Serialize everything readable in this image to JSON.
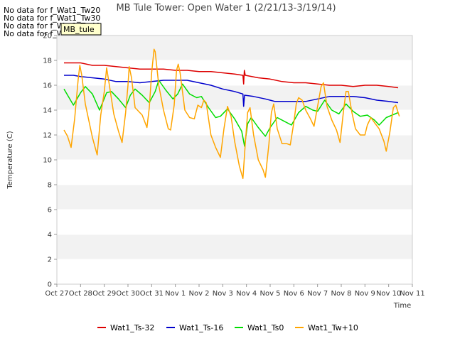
{
  "no_data_messages": [
    "No data for f_Wat1_Tw20",
    "No data for f_Wat1_Tw30",
    "No data for f_Wat1_Tw40",
    "No data for f_Wat1_Tw50"
  ],
  "tooltip_label": "MB_tule",
  "chart_data": {
    "type": "line",
    "title": "MB Tule Tower: Open Water 1 (2/21/13-3/19/14)",
    "xlabel": "Time",
    "ylabel": "Temperature (C)",
    "xlim": [
      0,
      15
    ],
    "ylim": [
      0,
      20
    ],
    "x_tick_values": [
      0,
      1,
      2,
      3,
      4,
      5,
      6,
      7,
      8,
      9,
      10,
      11,
      12,
      13,
      14,
      15
    ],
    "x_tick_labels": [
      "Oct 27",
      "Oct 28",
      "Oct 29",
      "Oct 30",
      "Oct 31",
      "Nov 1",
      "Nov 2",
      "Nov 3",
      "Nov 4",
      "Nov 5",
      "Nov 6",
      "Nov 7",
      "Nov 8",
      "Nov 9",
      "Nov 10",
      "Nov 11"
    ],
    "y_ticks": [
      0,
      2,
      4,
      6,
      8,
      10,
      12,
      14,
      16,
      18,
      20
    ],
    "grid": true,
    "legend_position": "bottom",
    "series": [
      {
        "name": "Wat1_Ts-32",
        "color": "#dd0000",
        "points": [
          [
            0.3,
            17.8
          ],
          [
            1.0,
            17.8
          ],
          [
            1.5,
            17.6
          ],
          [
            2.0,
            17.6
          ],
          [
            2.5,
            17.5
          ],
          [
            3.0,
            17.4
          ],
          [
            3.5,
            17.3
          ],
          [
            4.0,
            17.3
          ],
          [
            4.5,
            17.3
          ],
          [
            5.0,
            17.2
          ],
          [
            5.5,
            17.2
          ],
          [
            6.0,
            17.1
          ],
          [
            6.5,
            17.1
          ],
          [
            7.0,
            17.0
          ],
          [
            7.5,
            16.9
          ],
          [
            7.85,
            16.8
          ],
          [
            7.88,
            16.1
          ],
          [
            7.91,
            17.2
          ],
          [
            7.95,
            16.8
          ],
          [
            8.5,
            16.6
          ],
          [
            9.0,
            16.5
          ],
          [
            9.5,
            16.3
          ],
          [
            10.0,
            16.2
          ],
          [
            10.5,
            16.2
          ],
          [
            11.0,
            16.1
          ],
          [
            11.5,
            16.0
          ],
          [
            12.0,
            16.0
          ],
          [
            12.5,
            15.9
          ],
          [
            13.0,
            16.0
          ],
          [
            13.5,
            16.0
          ],
          [
            14.0,
            15.9
          ],
          [
            14.4,
            15.8
          ]
        ]
      },
      {
        "name": "Wat1_Ts-16",
        "color": "#0000cc",
        "points": [
          [
            0.3,
            16.8
          ],
          [
            0.7,
            16.8
          ],
          [
            1.0,
            16.7
          ],
          [
            1.5,
            16.6
          ],
          [
            2.0,
            16.5
          ],
          [
            2.5,
            16.3
          ],
          [
            3.0,
            16.3
          ],
          [
            3.5,
            16.2
          ],
          [
            4.0,
            16.3
          ],
          [
            4.5,
            16.4
          ],
          [
            5.0,
            16.4
          ],
          [
            5.5,
            16.4
          ],
          [
            6.0,
            16.2
          ],
          [
            6.5,
            16.0
          ],
          [
            7.0,
            15.7
          ],
          [
            7.5,
            15.5
          ],
          [
            7.85,
            15.3
          ],
          [
            7.88,
            14.3
          ],
          [
            7.92,
            15.2
          ],
          [
            8.3,
            15.1
          ],
          [
            8.8,
            14.9
          ],
          [
            9.2,
            14.7
          ],
          [
            10.0,
            14.7
          ],
          [
            10.5,
            14.7
          ],
          [
            11.0,
            14.9
          ],
          [
            11.5,
            15.1
          ],
          [
            12.0,
            15.1
          ],
          [
            12.5,
            15.1
          ],
          [
            13.0,
            15.0
          ],
          [
            13.5,
            14.8
          ],
          [
            14.0,
            14.7
          ],
          [
            14.4,
            14.6
          ]
        ]
      },
      {
        "name": "Wat1_Ts0",
        "color": "#00dd00",
        "points": [
          [
            0.3,
            15.7
          ],
          [
            0.7,
            14.4
          ],
          [
            1.0,
            15.4
          ],
          [
            1.2,
            15.9
          ],
          [
            1.5,
            15.3
          ],
          [
            1.8,
            14.0
          ],
          [
            2.1,
            15.4
          ],
          [
            2.3,
            15.5
          ],
          [
            2.6,
            14.9
          ],
          [
            2.9,
            14.2
          ],
          [
            3.1,
            15.2
          ],
          [
            3.3,
            15.7
          ],
          [
            3.6,
            15.2
          ],
          [
            3.9,
            14.6
          ],
          [
            4.15,
            15.5
          ],
          [
            4.3,
            16.4
          ],
          [
            4.6,
            15.6
          ],
          [
            4.9,
            14.9
          ],
          [
            5.1,
            15.3
          ],
          [
            5.3,
            16.1
          ],
          [
            5.6,
            15.3
          ],
          [
            5.9,
            15.0
          ],
          [
            6.1,
            15.1
          ],
          [
            6.4,
            14.2
          ],
          [
            6.7,
            13.4
          ],
          [
            6.9,
            13.5
          ],
          [
            7.2,
            14.1
          ],
          [
            7.5,
            13.3
          ],
          [
            7.8,
            12.3
          ],
          [
            7.92,
            11.1
          ],
          [
            8.05,
            12.9
          ],
          [
            8.2,
            13.4
          ],
          [
            8.5,
            12.6
          ],
          [
            8.8,
            11.9
          ],
          [
            9.0,
            12.6
          ],
          [
            9.3,
            13.4
          ],
          [
            9.6,
            13.1
          ],
          [
            9.9,
            12.8
          ],
          [
            10.2,
            13.8
          ],
          [
            10.5,
            14.3
          ],
          [
            10.8,
            14.0
          ],
          [
            11.0,
            13.9
          ],
          [
            11.3,
            14.8
          ],
          [
            11.6,
            14.0
          ],
          [
            11.9,
            13.7
          ],
          [
            12.2,
            14.5
          ],
          [
            12.5,
            13.9
          ],
          [
            12.8,
            13.5
          ],
          [
            13.1,
            13.6
          ],
          [
            13.4,
            13.2
          ],
          [
            13.6,
            12.8
          ],
          [
            13.9,
            13.4
          ],
          [
            14.4,
            13.8
          ]
        ]
      },
      {
        "name": "Wat1_Tw+10",
        "color": "#ffa500",
        "points": [
          [
            0.3,
            12.4
          ],
          [
            0.45,
            11.9
          ],
          [
            0.6,
            11.0
          ],
          [
            0.75,
            13.3
          ],
          [
            0.9,
            16.5
          ],
          [
            0.97,
            17.6
          ],
          [
            1.05,
            16.8
          ],
          [
            1.2,
            14.5
          ],
          [
            1.5,
            11.8
          ],
          [
            1.7,
            10.4
          ],
          [
            1.85,
            13.6
          ],
          [
            2.0,
            15.5
          ],
          [
            2.1,
            17.4
          ],
          [
            2.2,
            16.2
          ],
          [
            2.4,
            13.7
          ],
          [
            2.6,
            12.3
          ],
          [
            2.75,
            11.4
          ],
          [
            2.9,
            13.8
          ],
          [
            3.0,
            16.0
          ],
          [
            3.05,
            17.5
          ],
          [
            3.15,
            16.6
          ],
          [
            3.3,
            14.2
          ],
          [
            3.6,
            13.6
          ],
          [
            3.8,
            12.6
          ],
          [
            3.9,
            14.2
          ],
          [
            4.0,
            17.0
          ],
          [
            4.1,
            18.9
          ],
          [
            4.15,
            18.7
          ],
          [
            4.3,
            16.0
          ],
          [
            4.5,
            14.0
          ],
          [
            4.7,
            12.5
          ],
          [
            4.8,
            12.4
          ],
          [
            4.95,
            14.4
          ],
          [
            5.05,
            17.2
          ],
          [
            5.12,
            17.7
          ],
          [
            5.2,
            17.0
          ],
          [
            5.4,
            14.0
          ],
          [
            5.6,
            13.4
          ],
          [
            5.8,
            13.3
          ],
          [
            5.95,
            14.4
          ],
          [
            6.1,
            14.2
          ],
          [
            6.2,
            14.8
          ],
          [
            6.3,
            14.6
          ],
          [
            6.5,
            12.0
          ],
          [
            6.7,
            11.0
          ],
          [
            6.9,
            10.2
          ],
          [
            7.05,
            12.5
          ],
          [
            7.2,
            14.3
          ],
          [
            7.35,
            13.5
          ],
          [
            7.5,
            11.5
          ],
          [
            7.7,
            9.5
          ],
          [
            7.85,
            8.5
          ],
          [
            7.95,
            11.3
          ],
          [
            8.05,
            13.8
          ],
          [
            8.15,
            14.2
          ],
          [
            8.3,
            12.0
          ],
          [
            8.5,
            10.0
          ],
          [
            8.7,
            9.2
          ],
          [
            8.8,
            8.6
          ],
          [
            8.95,
            11.3
          ],
          [
            9.05,
            13.8
          ],
          [
            9.15,
            14.5
          ],
          [
            9.3,
            12.5
          ],
          [
            9.5,
            11.3
          ],
          [
            9.7,
            11.3
          ],
          [
            9.85,
            11.2
          ],
          [
            10.0,
            13.0
          ],
          [
            10.1,
            14.5
          ],
          [
            10.2,
            15.0
          ],
          [
            10.35,
            14.8
          ],
          [
            10.5,
            14.0
          ],
          [
            10.7,
            13.3
          ],
          [
            10.85,
            12.7
          ],
          [
            11.0,
            14.3
          ],
          [
            11.15,
            15.9
          ],
          [
            11.25,
            16.2
          ],
          [
            11.4,
            14.3
          ],
          [
            11.6,
            13.2
          ],
          [
            11.8,
            12.4
          ],
          [
            11.95,
            11.4
          ],
          [
            12.1,
            14.0
          ],
          [
            12.2,
            15.5
          ],
          [
            12.3,
            15.5
          ],
          [
            12.45,
            13.8
          ],
          [
            12.6,
            12.5
          ],
          [
            12.8,
            12.0
          ],
          [
            13.0,
            12.0
          ],
          [
            13.1,
            12.8
          ],
          [
            13.25,
            13.4
          ],
          [
            13.4,
            13.0
          ],
          [
            13.6,
            12.5
          ],
          [
            13.8,
            11.5
          ],
          [
            13.9,
            10.7
          ],
          [
            14.05,
            12.2
          ],
          [
            14.2,
            14.2
          ],
          [
            14.3,
            14.4
          ],
          [
            14.45,
            13.5
          ]
        ]
      }
    ]
  }
}
